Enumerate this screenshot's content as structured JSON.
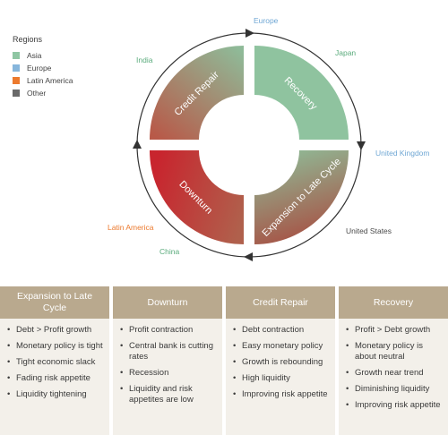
{
  "legend": {
    "title": "Regions",
    "items": [
      {
        "label": "Asia",
        "color": "#8fc6a3"
      },
      {
        "label": "Europe",
        "color": "#86b6dc"
      },
      {
        "label": "Latin America",
        "color": "#ec7a2e"
      },
      {
        "label": "Other",
        "color": "#6a6a6a"
      }
    ]
  },
  "cycle": {
    "phases": [
      {
        "label": "Recovery",
        "from": "#8fc39f",
        "to": "#8fc39f"
      },
      {
        "label": "Expansion to Late Cycle",
        "from": "#8fbc98",
        "to": "#a75043"
      },
      {
        "label": "Downturn",
        "from": "#c8252e",
        "to": "#b0604c"
      },
      {
        "label": "Credit Repair",
        "from": "#b85948",
        "to": "#8fba98"
      }
    ],
    "arc_color": "#333333"
  },
  "regions": {
    "europe": {
      "label": "Europe",
      "color": "#6fa7d4"
    },
    "japan": {
      "label": "Japan",
      "color": "#5aab7c"
    },
    "india": {
      "label": "India",
      "color": "#5aab7c"
    },
    "uk": {
      "label": "United Kingdom",
      "color": "#6fa7d4"
    },
    "us": {
      "label": "United States",
      "color": "#4a4a4a"
    },
    "latam": {
      "label": "Latin America",
      "color": "#ec7a2e"
    },
    "china": {
      "label": "China",
      "color": "#5aab7c"
    }
  },
  "cards": [
    {
      "title": "Expansion to Late Cycle",
      "items": [
        "Debt > Profit growth",
        "Monetary policy is tight",
        "Tight economic slack",
        "Fading risk appetite",
        "Liquidity tightening"
      ]
    },
    {
      "title": "Downturn",
      "items": [
        "Profit contraction",
        "Central bank is cutting rates",
        "Recession",
        "Liquidity and risk appetites are low"
      ]
    },
    {
      "title": "Credit Repair",
      "items": [
        "Debt contraction",
        "Easy monetary policy",
        "Growth is rebounding",
        "High liquidity",
        "Improving risk appetite"
      ]
    },
    {
      "title": "Recovery",
      "items": [
        "Profit > Debt growth",
        "Monetary policy is about neutral",
        "Growth near trend",
        "Diminishing liquidity",
        "Improving risk appetite"
      ]
    }
  ]
}
